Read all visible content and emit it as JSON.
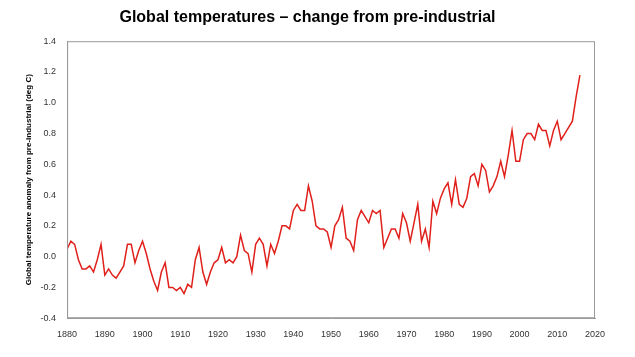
{
  "chart_data": {
    "type": "line",
    "title": "Global temperatures – change from pre-industrial",
    "y_label": "Global temperature anomaly from pre-industrial (deg C)",
    "x": [
      1880,
      1881,
      1882,
      1883,
      1884,
      1885,
      1886,
      1887,
      1888,
      1889,
      1890,
      1891,
      1892,
      1893,
      1894,
      1895,
      1896,
      1897,
      1898,
      1899,
      1900,
      1901,
      1902,
      1903,
      1904,
      1905,
      1906,
      1907,
      1908,
      1909,
      1910,
      1911,
      1912,
      1913,
      1914,
      1915,
      1916,
      1917,
      1918,
      1919,
      1920,
      1921,
      1922,
      1923,
      1924,
      1925,
      1926,
      1927,
      1928,
      1929,
      1930,
      1931,
      1932,
      1933,
      1934,
      1935,
      1936,
      1937,
      1938,
      1939,
      1940,
      1941,
      1942,
      1943,
      1944,
      1945,
      1946,
      1947,
      1948,
      1949,
      1950,
      1951,
      1952,
      1953,
      1954,
      1955,
      1956,
      1957,
      1958,
      1959,
      1960,
      1961,
      1962,
      1963,
      1964,
      1965,
      1966,
      1967,
      1968,
      1969,
      1970,
      1971,
      1972,
      1973,
      1974,
      1975,
      1976,
      1977,
      1978,
      1979,
      1980,
      1981,
      1982,
      1983,
      1984,
      1985,
      1986,
      1987,
      1988,
      1989,
      1990,
      1991,
      1992,
      1993,
      1994,
      1995,
      1996,
      1997,
      1998,
      1999,
      2000,
      2001,
      2002,
      2003,
      2004,
      2005,
      2006,
      2007,
      2008,
      2009,
      2010,
      2011,
      2012,
      2013,
      2014,
      2015,
      2016
    ],
    "values": [
      0.05,
      0.1,
      0.08,
      -0.02,
      -0.08,
      -0.08,
      -0.06,
      -0.1,
      -0.02,
      0.08,
      -0.12,
      -0.08,
      -0.12,
      -0.14,
      -0.1,
      -0.06,
      0.08,
      0.08,
      -0.04,
      0.04,
      0.1,
      0.02,
      -0.08,
      -0.16,
      -0.22,
      -0.1,
      -0.04,
      -0.2,
      -0.2,
      -0.22,
      -0.2,
      -0.24,
      -0.18,
      -0.2,
      -0.02,
      0.06,
      -0.1,
      -0.18,
      -0.1,
      -0.04,
      -0.02,
      0.06,
      -0.04,
      -0.02,
      -0.04,
      0.0,
      0.14,
      0.04,
      0.02,
      -0.1,
      0.08,
      0.12,
      0.08,
      -0.06,
      0.08,
      0.02,
      0.1,
      0.2,
      0.2,
      0.18,
      0.3,
      0.34,
      0.3,
      0.3,
      0.46,
      0.36,
      0.2,
      0.18,
      0.18,
      0.16,
      0.06,
      0.2,
      0.24,
      0.32,
      0.12,
      0.1,
      0.04,
      0.24,
      0.3,
      0.26,
      0.22,
      0.3,
      0.28,
      0.3,
      0.06,
      0.12,
      0.18,
      0.18,
      0.12,
      0.28,
      0.22,
      0.1,
      0.22,
      0.34,
      0.1,
      0.18,
      0.06,
      0.36,
      0.28,
      0.38,
      0.44,
      0.48,
      0.34,
      0.5,
      0.34,
      0.32,
      0.38,
      0.52,
      0.54,
      0.46,
      0.6,
      0.56,
      0.42,
      0.46,
      0.52,
      0.62,
      0.52,
      0.66,
      0.82,
      0.62,
      0.62,
      0.76,
      0.8,
      0.8,
      0.76,
      0.86,
      0.82,
      0.82,
      0.72,
      0.82,
      0.88,
      0.76,
      0.8,
      0.84,
      0.88,
      1.04,
      1.18
    ],
    "color": "#e0201b",
    "xlim": [
      1880,
      2020
    ],
    "xticks": [
      1880,
      1890,
      1900,
      1910,
      1920,
      1930,
      1940,
      1950,
      1960,
      1970,
      1980,
      1990,
      2000,
      2010,
      2020
    ],
    "ylim": [
      -0.4,
      1.4
    ],
    "yticks": [
      -0.4,
      -0.2,
      {
        "value": 0,
        "label": "0.0"
      },
      0.2,
      0.4,
      0.6,
      0.8,
      {
        "value": 1,
        "label": "1.0"
      },
      1.2,
      1.4
    ],
    "grid": false
  }
}
